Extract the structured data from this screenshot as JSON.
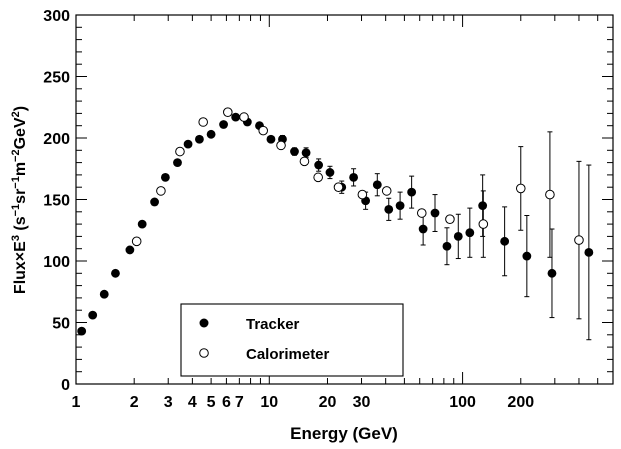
{
  "chart_data": {
    "type": "scatter",
    "title": "",
    "xlabel": "Energy (GeV)",
    "ylabel": {
      "main": "Flux×E",
      "sup": "3",
      "unit_open": " (s",
      "unit_m1a": "−1",
      "unit_sr": "sr",
      "unit_m1b": "−1",
      "unit_m": "m",
      "unit_m2": "−2",
      "unit_gev": "GeV",
      "unit_2": "2",
      "unit_close": ")"
    },
    "x_scale": "log",
    "xlim": [
      1,
      600
    ],
    "ylim": [
      0,
      300
    ],
    "x_ticks": [
      1,
      2,
      3,
      4,
      5,
      6,
      7,
      10,
      20,
      30,
      100,
      200
    ],
    "x_tick_labels": [
      "1",
      "2",
      "3",
      "4",
      "5",
      "6",
      "7",
      "10",
      "20",
      "30",
      "100",
      "200"
    ],
    "y_ticks": [
      0,
      50,
      100,
      150,
      200,
      250,
      300
    ],
    "y_tick_labels": [
      "0",
      "50",
      "100",
      "150",
      "200",
      "250",
      "300"
    ],
    "grid": false,
    "legend_position": "bottom-left",
    "series": [
      {
        "name": "Tracker",
        "marker": "filled-circle",
        "points": [
          {
            "x": 1.07,
            "y": 43,
            "err": 0
          },
          {
            "x": 1.22,
            "y": 56,
            "err": 0
          },
          {
            "x": 1.4,
            "y": 73,
            "err": 0
          },
          {
            "x": 1.6,
            "y": 90,
            "err": 0
          },
          {
            "x": 1.9,
            "y": 109,
            "err": 0
          },
          {
            "x": 2.2,
            "y": 130,
            "err": 0
          },
          {
            "x": 2.55,
            "y": 148,
            "err": 0
          },
          {
            "x": 2.9,
            "y": 168,
            "err": 0
          },
          {
            "x": 3.35,
            "y": 180,
            "err": 0
          },
          {
            "x": 3.8,
            "y": 195,
            "err": 0
          },
          {
            "x": 4.35,
            "y": 199,
            "err": 0
          },
          {
            "x": 5.0,
            "y": 203,
            "err": 0
          },
          {
            "x": 5.8,
            "y": 211,
            "err": 0
          },
          {
            "x": 6.7,
            "y": 217,
            "err": 0
          },
          {
            "x": 7.7,
            "y": 213,
            "err": 0
          },
          {
            "x": 8.9,
            "y": 210,
            "err": 0
          },
          {
            "x": 10.2,
            "y": 199,
            "err": 0
          },
          {
            "x": 11.7,
            "y": 199,
            "err": 3
          },
          {
            "x": 13.5,
            "y": 189,
            "err": 3
          },
          {
            "x": 15.5,
            "y": 188,
            "err": 4
          },
          {
            "x": 18.0,
            "y": 178,
            "err": 5
          },
          {
            "x": 20.6,
            "y": 172,
            "err": 5
          },
          {
            "x": 23.7,
            "y": 160,
            "err": 5
          },
          {
            "x": 27.3,
            "y": 168,
            "err": 7
          },
          {
            "x": 31.5,
            "y": 149,
            "err": 7
          },
          {
            "x": 36.2,
            "y": 162,
            "err": 9
          },
          {
            "x": 41.5,
            "y": 142,
            "err": 9
          },
          {
            "x": 47.5,
            "y": 145,
            "err": 11
          },
          {
            "x": 54.5,
            "y": 156,
            "err": 13
          },
          {
            "x": 62.5,
            "y": 126,
            "err": 13
          },
          {
            "x": 72,
            "y": 139,
            "err": 15
          },
          {
            "x": 83,
            "y": 112,
            "err": 15
          },
          {
            "x": 95,
            "y": 120,
            "err": 18
          },
          {
            "x": 109,
            "y": 123,
            "err": 20
          },
          {
            "x": 127,
            "y": 145,
            "err": 25
          },
          {
            "x": 165,
            "y": 116,
            "err": 28
          },
          {
            "x": 215,
            "y": 104,
            "err": 33
          },
          {
            "x": 290,
            "y": 90,
            "err": 36
          },
          {
            "x": 450,
            "y": 107,
            "err": 71
          }
        ]
      },
      {
        "name": "Calorimeter",
        "marker": "open-circle",
        "points": [
          {
            "x": 2.06,
            "y": 116,
            "err": 0
          },
          {
            "x": 2.75,
            "y": 157,
            "err": 0
          },
          {
            "x": 3.45,
            "y": 189,
            "err": 0
          },
          {
            "x": 4.55,
            "y": 213,
            "err": 0
          },
          {
            "x": 6.1,
            "y": 221,
            "err": 0
          },
          {
            "x": 7.4,
            "y": 217,
            "err": 0
          },
          {
            "x": 9.3,
            "y": 206,
            "err": 0
          },
          {
            "x": 11.5,
            "y": 194,
            "err": 0
          },
          {
            "x": 15.2,
            "y": 181,
            "err": 0
          },
          {
            "x": 17.9,
            "y": 168,
            "err": 0
          },
          {
            "x": 22.8,
            "y": 160,
            "err": 0
          },
          {
            "x": 30.3,
            "y": 154,
            "err": 0
          },
          {
            "x": 40.5,
            "y": 157,
            "err": 0
          },
          {
            "x": 61.5,
            "y": 139,
            "err": 0
          },
          {
            "x": 86,
            "y": 134,
            "err": 0
          },
          {
            "x": 128,
            "y": 130,
            "err": 27
          },
          {
            "x": 200,
            "y": 159,
            "err": 34
          },
          {
            "x": 283,
            "y": 154,
            "err": 51
          },
          {
            "x": 400,
            "y": 117,
            "err": 64
          }
        ]
      }
    ]
  }
}
